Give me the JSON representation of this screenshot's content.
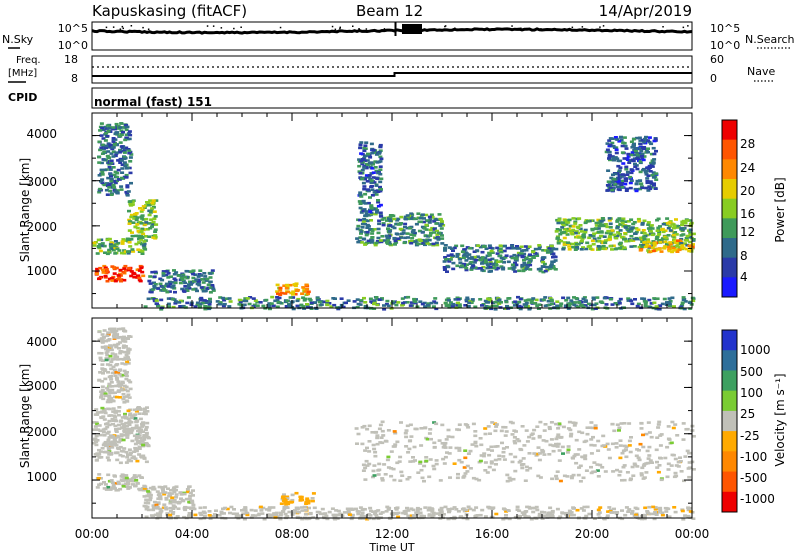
{
  "header": {
    "station": "Kapuskasing (fitACF)",
    "beam": "Beam 12",
    "date": "14/Apr/2019"
  },
  "noise_panel": {
    "left_label": "N.Sky",
    "left_ticks": [
      "10^5",
      "10^0"
    ],
    "right_ticks": [
      "10^5",
      "10^0"
    ],
    "right_label": "N.Search"
  },
  "freq_panel": {
    "left_label_line1": "Freq.",
    "left_label_line2": "[MHz]",
    "left_ticks": [
      "18",
      "8"
    ],
    "right_ticks": [
      "60",
      "0"
    ],
    "right_label": "Nave"
  },
  "cpid": {
    "label": "CPID",
    "value": "normal (fast) 151"
  },
  "power_panel": {
    "ylabel": "Slant Range [km]",
    "yticks": [
      "4000",
      "3000",
      "2000",
      "1000"
    ],
    "colorbar_label": "Power [dB]",
    "colorbar_ticks": [
      "28",
      "24",
      "20",
      "16",
      "12",
      "8",
      "4"
    ],
    "colors": [
      "#1a1aff",
      "#2a3aa8",
      "#2f6a8a",
      "#3f9a5a",
      "#88cc22",
      "#e6cc00",
      "#ff8800",
      "#ff5500",
      "#ee0000"
    ]
  },
  "velocity_panel": {
    "ylabel": "Slant Range [km]",
    "yticks": [
      "4000",
      "3000",
      "2000",
      "1000"
    ],
    "colorbar_label": "Velocity [m s⁻¹]",
    "colorbar_ticks": [
      "1000",
      "500",
      "100",
      "25",
      "-25",
      "-100",
      "-500",
      "-1000"
    ],
    "colors": [
      "#2233cc",
      "#2e6f9a",
      "#3da060",
      "#7acc33",
      "#c0c0b8",
      "#ffaa00",
      "#ff8800",
      "#ff5500",
      "#ee0000"
    ]
  },
  "xaxis": {
    "label": "Time UT",
    "ticks": [
      "00:00",
      "04:00",
      "08:00",
      "12:00",
      "16:00",
      "20:00",
      "00:00"
    ]
  },
  "chart_data": [
    {
      "type": "heatmap",
      "title": "Power",
      "xlabel": "Time UT",
      "ylabel": "Slant Range [km]",
      "xlim": [
        0,
        24
      ],
      "ylim": [
        180,
        4500
      ],
      "clim": [
        0,
        32
      ],
      "regions": [
        {
          "t0": 0.0,
          "t1": 2.1,
          "r0": 1400,
          "r1": 1750,
          "value": 14
        },
        {
          "t0": 0.1,
          "t1": 2.0,
          "r0": 800,
          "r1": 1150,
          "value": 28
        },
        {
          "t0": 1.4,
          "t1": 2.5,
          "r0": 1750,
          "r1": 2600,
          "value": 15
        },
        {
          "t0": 0.2,
          "t1": 1.5,
          "r0": 2700,
          "r1": 4300,
          "value": 9
        },
        {
          "t0": 2.2,
          "t1": 4.8,
          "r0": 550,
          "r1": 1050,
          "value": 9
        },
        {
          "t0": 7.3,
          "t1": 8.6,
          "r0": 500,
          "r1": 750,
          "value": 22
        },
        {
          "t0": 2.0,
          "t1": 24.0,
          "r0": 180,
          "r1": 450,
          "value": 10
        },
        {
          "t0": 10.5,
          "t1": 14.0,
          "r0": 1600,
          "r1": 2300,
          "value": 11
        },
        {
          "t0": 14.0,
          "t1": 18.5,
          "r0": 1000,
          "r1": 1600,
          "value": 10
        },
        {
          "t0": 18.5,
          "t1": 24.0,
          "r0": 1500,
          "r1": 2200,
          "value": 14
        },
        {
          "t0": 21.8,
          "t1": 24.0,
          "r0": 1450,
          "r1": 1700,
          "value": 22
        },
        {
          "t0": 10.6,
          "t1": 11.5,
          "r0": 2300,
          "r1": 3900,
          "value": 8
        },
        {
          "t0": 20.5,
          "t1": 22.5,
          "r0": 2800,
          "r1": 4000,
          "value": 7
        }
      ]
    },
    {
      "type": "heatmap",
      "title": "Velocity",
      "xlabel": "Time UT",
      "ylabel": "Slant Range [km]",
      "xlim": [
        0,
        24
      ],
      "ylim": [
        180,
        4500
      ],
      "clim": [
        -1000,
        1000
      ],
      "regions": [
        {
          "t0": 0.0,
          "t1": 2.2,
          "r0": 1400,
          "r1": 2600,
          "value": 0
        },
        {
          "t0": 0.1,
          "t1": 2.0,
          "r0": 800,
          "r1": 1150,
          "value": 0
        },
        {
          "t0": 2.0,
          "t1": 4.0,
          "r0": 400,
          "r1": 900,
          "value": 0
        },
        {
          "t0": 7.5,
          "t1": 8.8,
          "r0": 500,
          "r1": 750,
          "value": -150
        },
        {
          "t0": 2.0,
          "t1": 24.0,
          "r0": 180,
          "r1": 450,
          "value": -60
        },
        {
          "t0": 10.5,
          "t1": 24.0,
          "r0": 1000,
          "r1": 2300,
          "value": 0
        },
        {
          "t0": 0.2,
          "t1": 1.5,
          "r0": 2700,
          "r1": 4300,
          "value": 0
        }
      ]
    }
  ]
}
